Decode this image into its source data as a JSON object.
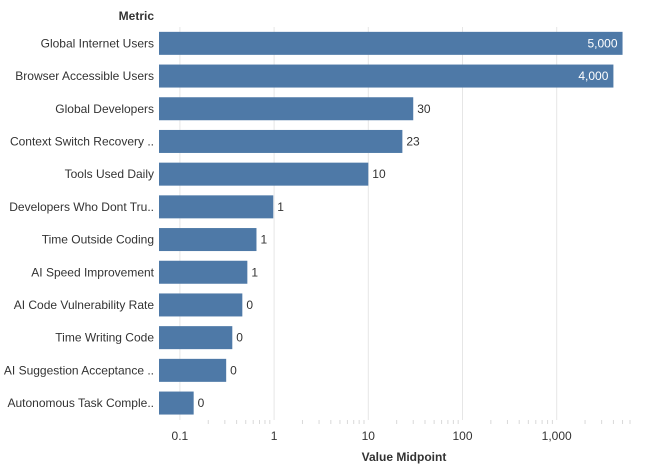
{
  "chart_data": {
    "type": "bar",
    "orientation": "horizontal",
    "row_header": "Metric",
    "xlabel": "Value Midpoint",
    "x_scale": "log",
    "xlim": [
      0.06,
      6000
    ],
    "x_ticks": [
      0.1,
      1,
      10,
      100,
      1000
    ],
    "x_tick_labels": [
      "0.1",
      "1",
      "10",
      "100",
      "1,000"
    ],
    "grid": true,
    "bar_color": "#4e79a7",
    "categories": [
      "Global Internet Users",
      "Browser Accessible Users",
      "Global Developers",
      "Context Switch Recovery ..",
      "Tools Used Daily",
      "Developers Who Dont Tru..",
      "Time Outside Coding",
      "AI Speed Improvement",
      "AI Code Vulnerability Rate",
      "Time Writing Code",
      "AI Suggestion Acceptance ..",
      "Autonomous Task Comple.."
    ],
    "values": [
      5000,
      4000,
      30,
      23,
      10,
      0.98,
      0.65,
      0.52,
      0.46,
      0.36,
      0.31,
      0.14
    ],
    "value_labels": [
      "5,000",
      "4,000",
      "30",
      "23",
      "10",
      "1",
      "1",
      "1",
      "0",
      "0",
      "0",
      "0"
    ]
  }
}
